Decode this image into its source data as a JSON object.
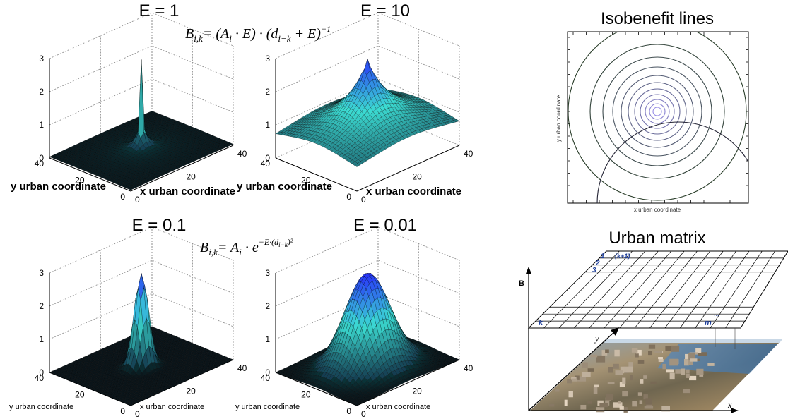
{
  "plots": [
    {
      "title": "E = 1",
      "E": 1,
      "kind": "recip",
      "x_label": "x urban coordinate",
      "y_label": "y urban coordinate",
      "z_ticks": [
        "0",
        "1",
        "2",
        "3"
      ],
      "x_ticks": [
        "0",
        "20",
        "40"
      ],
      "y_ticks": [
        "40",
        "20",
        "0"
      ]
    },
    {
      "title": "E = 10",
      "E": 10,
      "kind": "recip",
      "x_label": "x urban coordinate",
      "y_label": "y urban coordinate",
      "z_ticks": [
        "0",
        "1",
        "2",
        "3"
      ],
      "x_ticks": [
        "0",
        "20",
        "40"
      ],
      "y_ticks": [
        "40",
        "20",
        "0"
      ]
    },
    {
      "title": "E = 0.1",
      "E": 0.1,
      "kind": "gauss",
      "x_label": "x urban coordinate",
      "y_label": "y urban coordinate",
      "z_ticks": [
        "0",
        "1",
        "2",
        "3"
      ],
      "x_ticks": [
        "0",
        "20",
        "40"
      ],
      "y_ticks": [
        "40",
        "20",
        "0"
      ]
    },
    {
      "title": "E = 0.01",
      "E": 0.01,
      "kind": "gauss",
      "x_label": "x urban coordinate",
      "y_label": "y urban coordinate",
      "z_ticks": [
        "0",
        "1",
        "2",
        "3"
      ],
      "x_ticks": [
        "0",
        "20",
        "40"
      ],
      "y_ticks": [
        "40",
        "20",
        "0"
      ]
    }
  ],
  "formula_top": {
    "lhs": "B",
    "lhs_sub": "i,k",
    "rhs": "= (A",
    "rhs_sub": "i",
    "mid": " · E) · (d",
    "mid_sub": "i−k",
    "tail": " + E)",
    "sup": "−1"
  },
  "formula_bottom": {
    "lhs": "B",
    "lhs_sub": "i,k",
    "rhs": "= A",
    "rhs_sub": "i",
    "mid": " · e",
    "sup": "−E·(d",
    "sup_sub": "i−k",
    "sup_tail": ")²"
  },
  "isobenefit": {
    "title": "Isobenefit lines",
    "x_label": "x urban coordinate",
    "y_label": "y urban coordinate",
    "ring_count": 11
  },
  "urban_matrix": {
    "title": "Urban matrix",
    "axis_b": "B",
    "axis_y": "y",
    "axis_x": "x",
    "cells": {
      "top_1": "1",
      "top_k1": "(k+1)",
      "left_2": "2",
      "left_3": "3",
      "dots_top": "...",
      "dots_left": "...",
      "bottom_k": "k",
      "bottom_m": "m",
      "dots_right": "..."
    }
  }
}
